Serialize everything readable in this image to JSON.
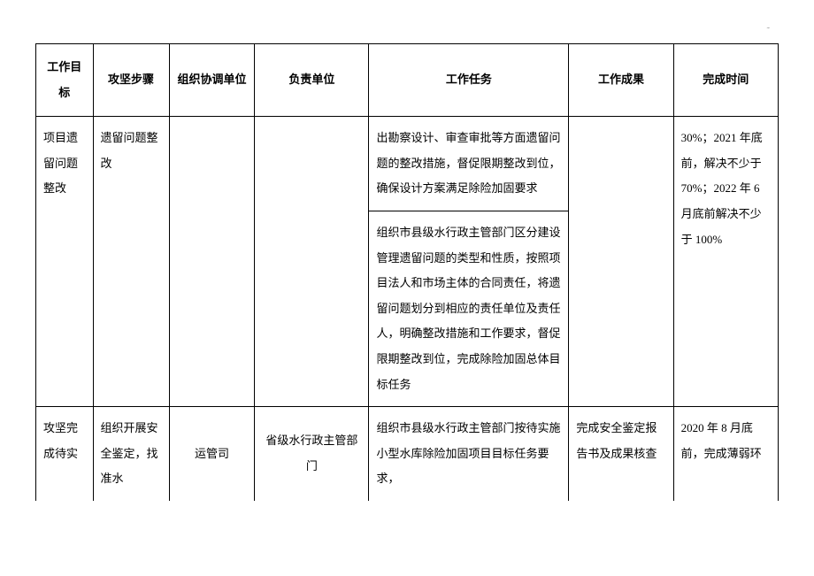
{
  "headers": {
    "c1": "工作目标",
    "c2": "攻坚步骤",
    "c3": "组织协调单位",
    "c4": "负责单位",
    "c5": "工作任务",
    "c6": "工作成果",
    "c7": "完成时间"
  },
  "rows": {
    "r1": {
      "goal": "项目遗留问题整改",
      "step": "遗留问题整改",
      "org": "",
      "resp": "",
      "task_a": "出勘察设计、审查审批等方面遗留问题的整改措施，督促限期整改到位，确保设计方案满足除险加固要求",
      "task_b": "组织市县级水行政主管部门区分建设管理遗留问题的类型和性质，按照项目法人和市场主体的合同责任，将遗留问题划分到相应的责任单位及责任人，明确整改措施和工作要求，督促限期整改到位，完成除险加固总体目标任务",
      "result": "",
      "time": "30%；2021 年底前，解决不少于 70%；2022 年 6 月底前解决不少于 100%"
    },
    "r2": {
      "goal": "攻坚完成待实",
      "step": "组织开展安全鉴定，找准水",
      "org": "运管司",
      "resp": "省级水行政主管部门",
      "task": "组织市县级水行政主管部门按待实施小型水库除险加固项目目标任务要求，",
      "result": "完成安全鉴定报告书及成果核查",
      "time": "2020 年 8 月底前，完成薄弱环"
    }
  },
  "style": {
    "background_color": "#ffffff",
    "border_color": "#000000",
    "font_family": "SimSun",
    "header_fontsize": 13,
    "cell_fontsize": 13,
    "line_height": 2.2
  }
}
